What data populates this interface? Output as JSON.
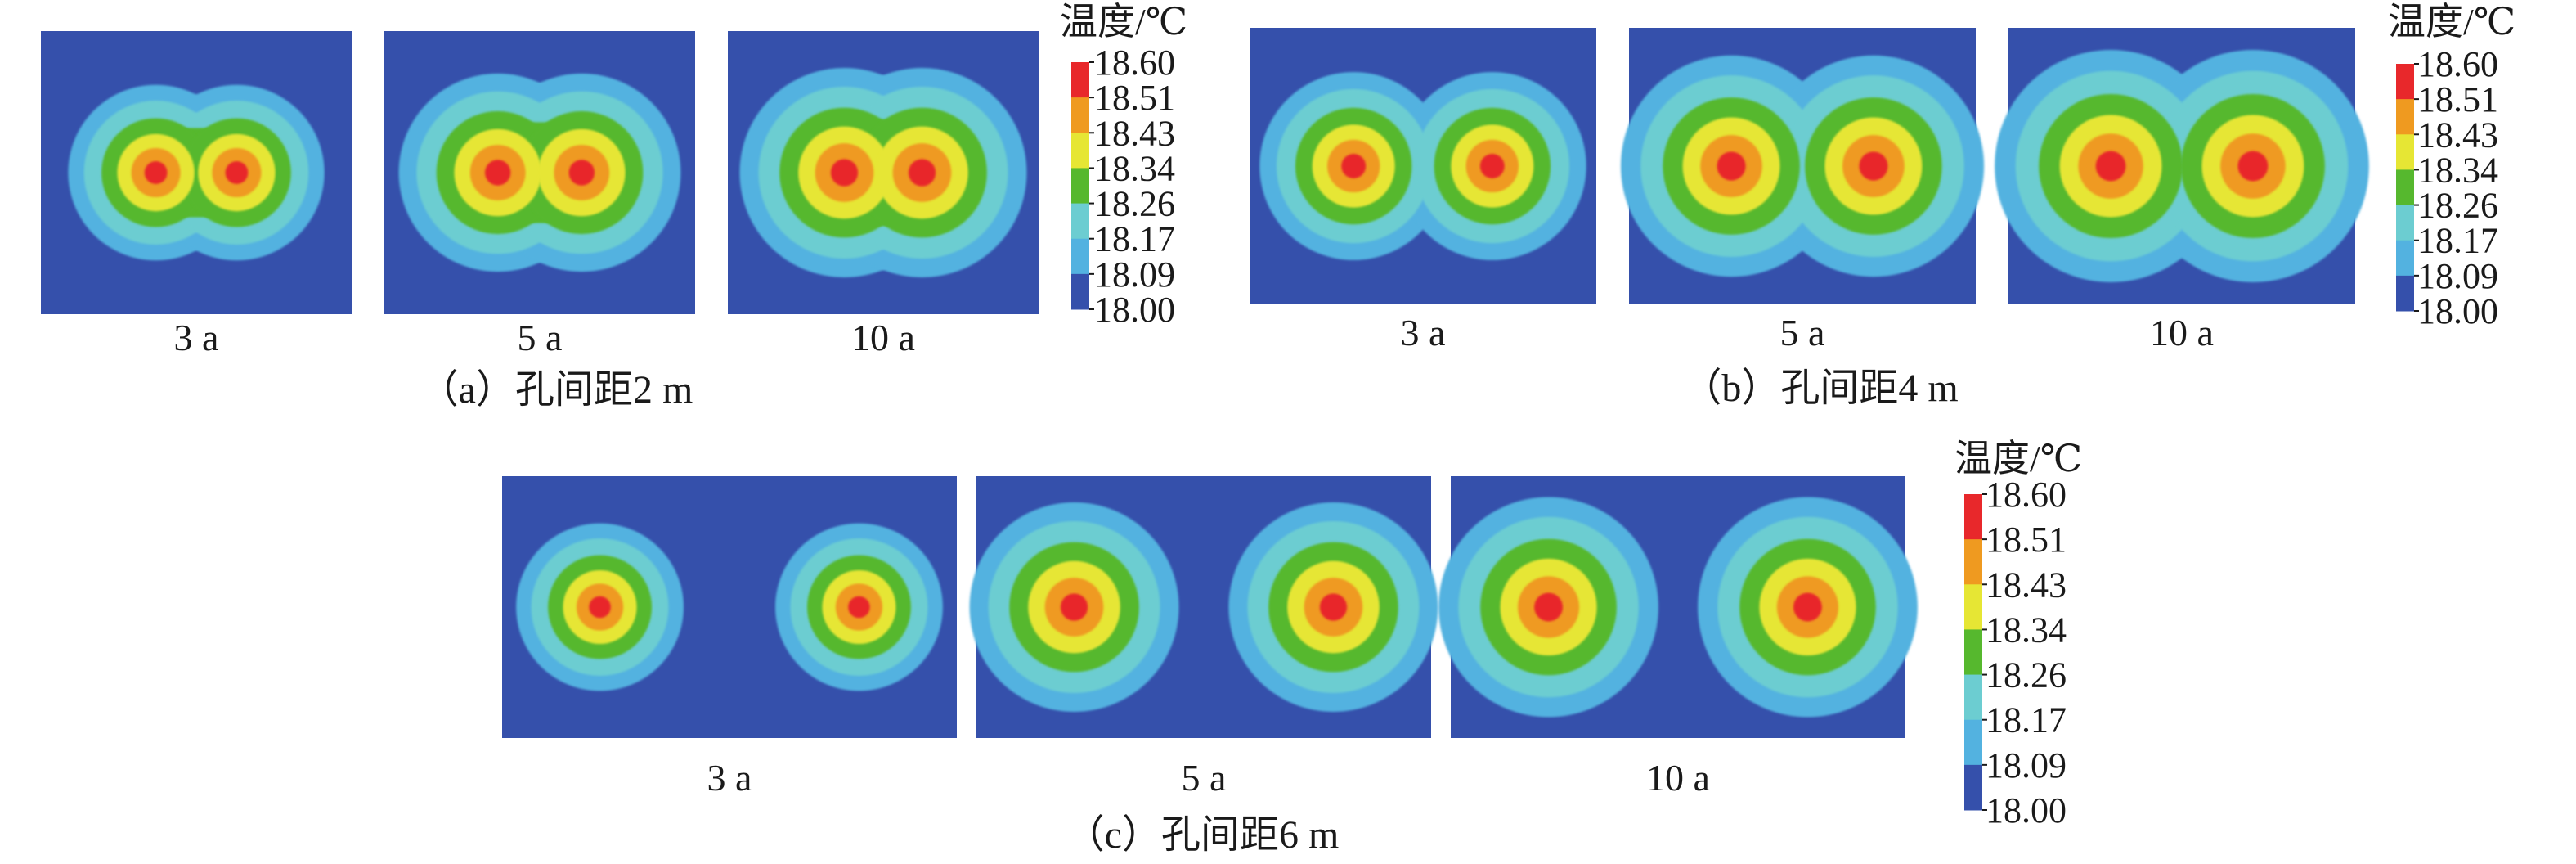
{
  "colorbar": {
    "title": "温度/℃",
    "ticks": [
      "18.60",
      "18.51",
      "18.43",
      "18.34",
      "18.26",
      "18.17",
      "18.09",
      "18.00"
    ],
    "colors": [
      "#e8282b",
      "#ef9a20",
      "#e6e634",
      "#56b82e",
      "#6ccdd1",
      "#53b2e0",
      "#3550ab"
    ]
  },
  "background_color": "#3550ab",
  "groups": [
    {
      "caption": "（a）孔间距2 m",
      "panels": [
        {
          "label": "3 a",
          "levels": 6
        },
        {
          "label": "5 a",
          "levels": 7
        },
        {
          "label": "10 a",
          "levels": 7
        }
      ]
    },
    {
      "caption": "（b）孔间距4 m",
      "panels": [
        {
          "label": "3 a",
          "levels": 6
        },
        {
          "label": "5 a",
          "levels": 7
        },
        {
          "label": "10 a",
          "levels": 7
        }
      ]
    },
    {
      "caption": "（c）孔间距6 m",
      "panels": [
        {
          "label": "3 a",
          "levels": 6
        },
        {
          "label": "5 a",
          "levels": 7
        },
        {
          "label": "10 a",
          "levels": 7
        }
      ]
    }
  ]
}
